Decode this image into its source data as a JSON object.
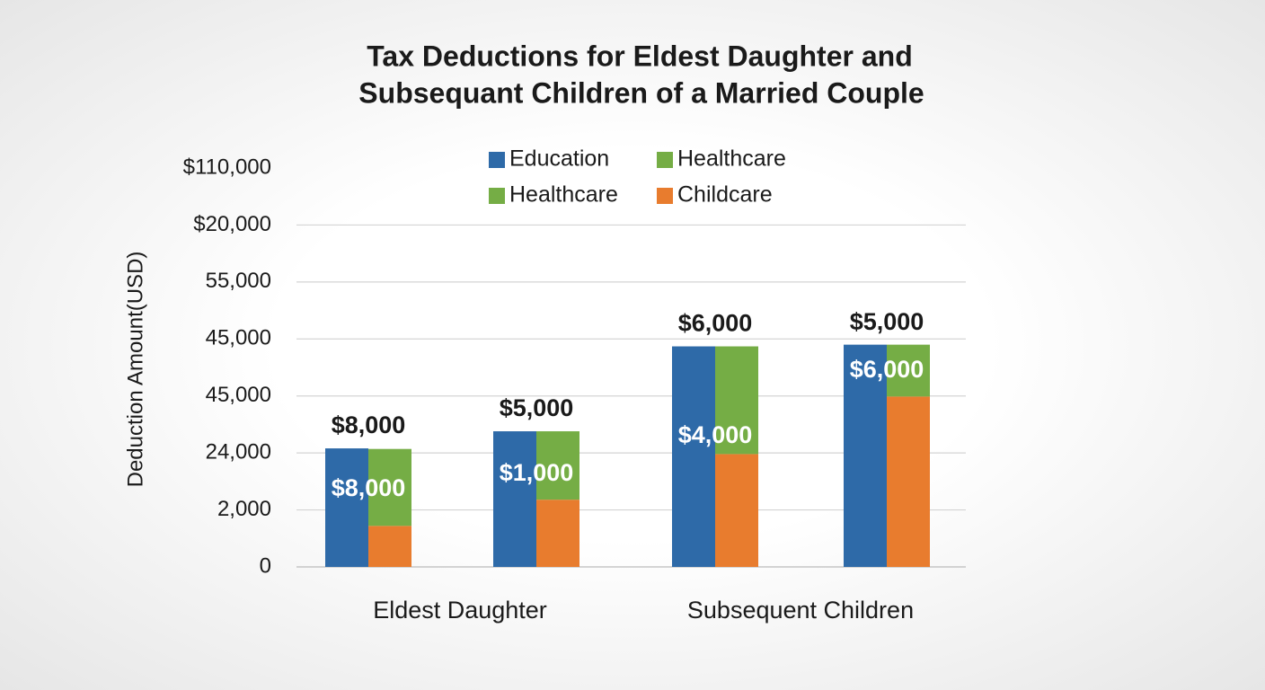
{
  "chart_data": {
    "type": "bar",
    "title": [
      "Tax Deductions for Eldest Daughter and",
      "Subsequant Children of a Married Couple"
    ],
    "y_label": "Deduction Amount(USD)",
    "categories": [
      null,
      null,
      null,
      null
    ],
    "group_labels": [
      "Eldest Daughter",
      "Subsequent Children"
    ],
    "series": [
      {
        "name": "Education",
        "color": "#2e6aa8",
        "bar": 0,
        "values": [
          2.08,
          2.38,
          3.87,
          3.9
        ]
      },
      {
        "name": "Healthcare",
        "color": "#75ad45",
        "bar": 1,
        "values": [
          1.35,
          1.2,
          1.89,
          0.91
        ]
      },
      {
        "name": "Healthcare",
        "color": "#75ad45",
        "bar": 1,
        "values": [
          null,
          null,
          null,
          null
        ]
      },
      {
        "name": "Childcare",
        "color": "#e87c2e",
        "bar": 1,
        "values": [
          0.72,
          1.18,
          1.98,
          2.99
        ]
      }
    ],
    "top_labels": [
      "$8,000",
      "$5,000",
      "$6,000",
      "$5,000"
    ],
    "inside_labels": [
      "$8,000",
      "$1,000",
      "$4,000",
      "$6,000"
    ],
    "ylim": [
      0,
      7
    ],
    "yticks": [
      0,
      {
        "value": 1,
        "label": "2,000"
      },
      {
        "value": 2,
        "label": "24,000"
      },
      {
        "value": 3,
        "label": "45,000"
      },
      {
        "value": 4,
        "label": "45,000"
      },
      {
        "value": 5,
        "label": "55,000"
      },
      {
        "value": 6,
        "label": "$20,000"
      },
      {
        "value": 7,
        "label": "$110,000"
      }
    ],
    "grid": true
  }
}
